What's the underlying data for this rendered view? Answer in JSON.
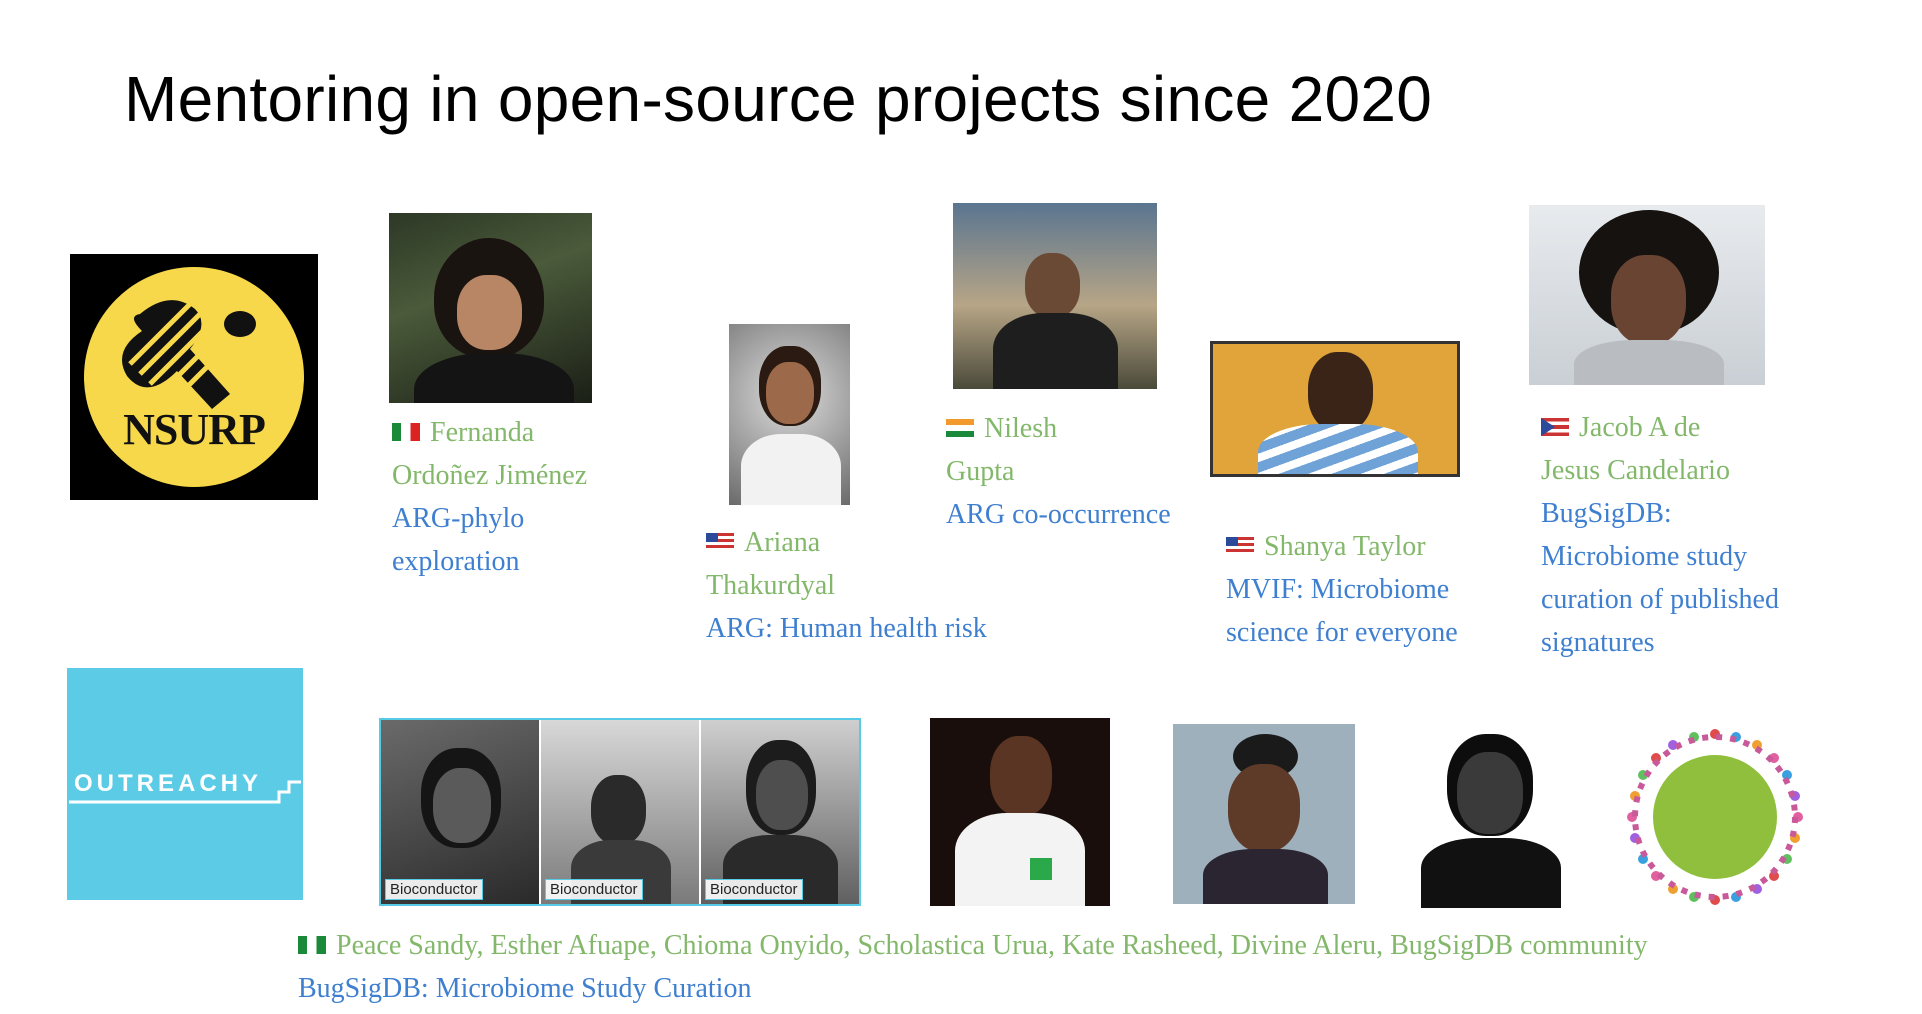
{
  "slide": {
    "title": "Mentoring in open-source projects since 2020"
  },
  "logos": {
    "nsurp": {
      "text": "NSURP",
      "bg": "#000000",
      "circle": "#f7d84a"
    },
    "outreachy": {
      "text": "OUTREACHY",
      "bg": "#5ccce6"
    },
    "bugsigdb": {
      "globe": "#8fbf3c"
    }
  },
  "mentees": [
    {
      "flag": "mexico-flag-icon",
      "name_line1": "Fernanda",
      "name_line2": "Ordoñez Jiménez",
      "project_line1": "ARG-phylo",
      "project_line2": "exploration"
    },
    {
      "flag": "usa-flag-icon",
      "name_line1": "Ariana",
      "name_line2": "Thakurdyal",
      "project_line1": "ARG: Human health risk"
    },
    {
      "flag": "india-flag-icon",
      "name_line1": "Nilesh",
      "name_line2": "Gupta",
      "project_line1": "ARG co-occurrence"
    },
    {
      "flag": "usa-flag-icon",
      "name_line1": "Shanya Taylor",
      "project_line1": "MVIF: Microbiome",
      "project_line2": "science for everyone"
    },
    {
      "flag": "puerto-rico-flag-icon",
      "name_line1": "Jacob A de",
      "name_line2": "Jesus Candelario",
      "project_line1": "BugSigDB:",
      "project_line2": "Microbiome study",
      "project_line3": "curation of published",
      "project_line4": "signatures"
    }
  ],
  "bioconductor_tags": [
    "Bioconductor",
    "Bioconductor",
    "Bioconductor"
  ],
  "group": {
    "flag": "nigeria-flag-icon",
    "names": "Peace Sandy, Esther Afuape, Chioma Onyido, Scholastica Urua, Kate Rasheed, Divine Aleru, BugSigDB community",
    "project": "BugSigDB: Microbiome Study Curation"
  },
  "colors": {
    "name_green": "#83b86b",
    "project_blue": "#3f7fd0"
  }
}
